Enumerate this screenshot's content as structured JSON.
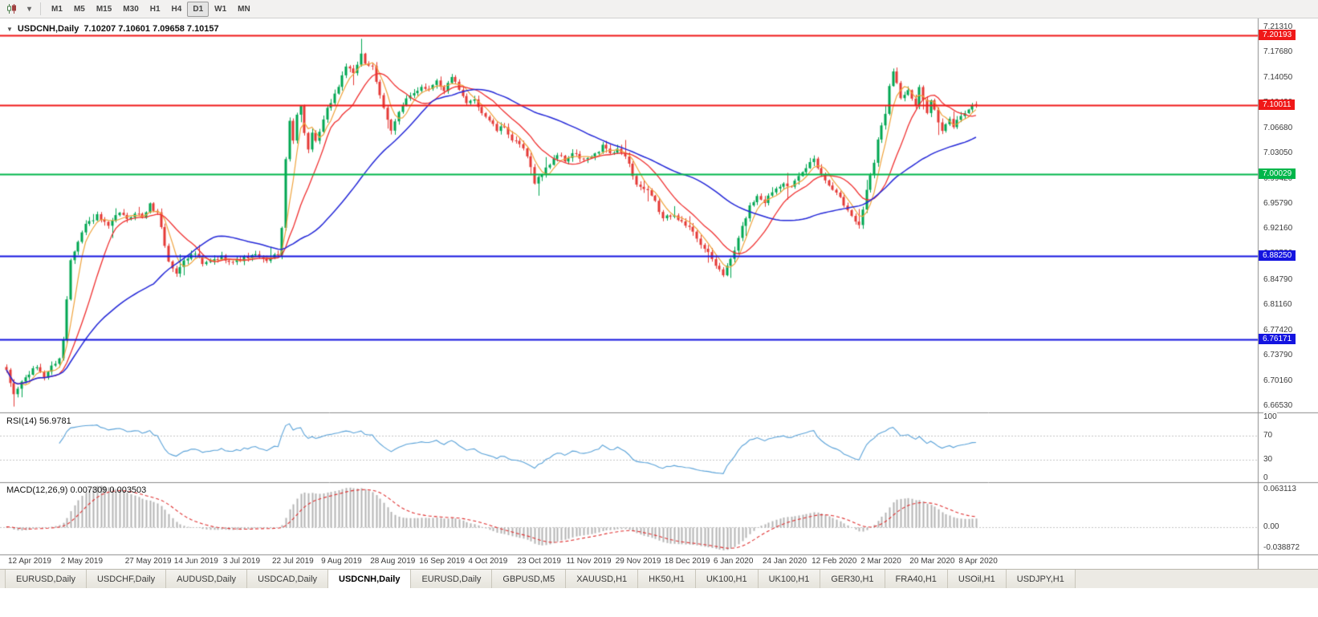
{
  "colors": {
    "up_candle": "#00a651",
    "down_candle": "#e53935",
    "ma_fast": "#f0a33c",
    "ma_mid": "#f03030",
    "ma_slow": "#2428d8",
    "rsi_line": "#5ba3d9",
    "macd_hist": "#b4b4b4",
    "macd_signal": "#e03030",
    "level_red": "#f01818",
    "level_green": "#00b64a",
    "level_blue": "#1414e0",
    "badge_red": "#f01818",
    "badge_green": "#00b64a",
    "badge_blue": "#1414e0",
    "panel_border": "#8c8c8c",
    "grid_dash": "#c6c6c6",
    "axis_text": "#3c3c3c"
  },
  "toolbar": {
    "timeframes": [
      "M1",
      "M5",
      "M15",
      "M30",
      "H1",
      "H4",
      "D1",
      "W1",
      "MN"
    ],
    "active_timeframe": "D1"
  },
  "chart": {
    "header": "USDCNH,Daily  7.10207 7.10601 7.09658 7.10157",
    "symbol": "USDCNH",
    "period": "Daily",
    "open": "7.10207",
    "high": "7.10601",
    "low": "7.09658",
    "close": "7.10157",
    "price_ticks": [
      "7.21310",
      "7.17680",
      "7.14050",
      "7.10420",
      "7.06680",
      "7.03050",
      "6.99420",
      "6.95790",
      "6.92160",
      "6.88530",
      "6.84790",
      "6.81160",
      "6.77420",
      "6.73790",
      "6.70160",
      "6.66530"
    ],
    "badges": [
      {
        "label": "7.20193",
        "value": 7.20193,
        "color_key": "badge_red"
      },
      {
        "label": "7.10011",
        "value": 7.10011,
        "color_key": "badge_red"
      },
      {
        "label": "7.00029",
        "value": 7.00029,
        "color_key": "badge_green"
      },
      {
        "label": "6.88250",
        "value": 6.8825,
        "color_key": "badge_blue"
      },
      {
        "label": "6.76171",
        "value": 6.76171,
        "color_key": "badge_blue"
      }
    ],
    "hlines": [
      {
        "value": 7.20193,
        "color_key": "level_red",
        "width": 2
      },
      {
        "value": 7.10011,
        "color_key": "level_red",
        "width": 2
      },
      {
        "value": 7.00029,
        "color_key": "level_green",
        "width": 2
      },
      {
        "value": 6.8825,
        "color_key": "level_blue",
        "width": 2
      },
      {
        "value": 6.76171,
        "color_key": "level_blue",
        "width": 2
      }
    ]
  },
  "rsi": {
    "label": "RSI(14) 56.9781",
    "period": 14,
    "current": "56.9781",
    "axis": [
      {
        "label": "100",
        "value": 100
      },
      {
        "label": "70",
        "value": 70
      },
      {
        "label": "30",
        "value": 30
      },
      {
        "label": "0",
        "value": 0
      }
    ],
    "levels": [
      70,
      30
    ]
  },
  "macd": {
    "label": "MACD(12,26,9) 0.007309 0.003503",
    "fast": 12,
    "slow": 26,
    "signal": 9,
    "current_main": "0.007309",
    "current_signal": "0.003503",
    "axis": [
      {
        "label": "0.063113",
        "value": 0.063113,
        "pos": "top"
      },
      {
        "label": "0.00",
        "value": 0,
        "pos": "zero"
      },
      {
        "label": "-0.038872",
        "value": -0.038872,
        "pos": "bottom"
      }
    ]
  },
  "chart_data": {
    "type": "candlestick",
    "title": "USDCNH Daily",
    "bars": 258,
    "price_range": [
      6.656,
      7.226
    ],
    "moving_averages": [
      {
        "name": "fast",
        "period": 5,
        "color_key": "ma_fast"
      },
      {
        "name": "mid",
        "period": 13,
        "color_key": "ma_mid"
      },
      {
        "name": "slow",
        "period": 40,
        "color_key": "ma_slow"
      }
    ],
    "indicators": [
      "RSI(14)",
      "MACD(12,26,9)"
    ],
    "close_waypoints": [
      [
        0,
        6.715
      ],
      [
        2,
        6.682
      ],
      [
        4,
        6.7
      ],
      [
        6,
        6.712
      ],
      [
        8,
        6.722
      ],
      [
        10,
        6.708
      ],
      [
        12,
        6.722
      ],
      [
        14,
        6.735
      ],
      [
        15,
        6.76
      ],
      [
        16,
        6.82
      ],
      [
        17,
        6.878
      ],
      [
        19,
        6.905
      ],
      [
        21,
        6.928
      ],
      [
        24,
        6.94
      ],
      [
        27,
        6.924
      ],
      [
        30,
        6.946
      ],
      [
        32,
        6.934
      ],
      [
        34,
        6.946
      ],
      [
        36,
        6.938
      ],
      [
        38,
        6.956
      ],
      [
        40,
        6.944
      ],
      [
        41,
        6.925
      ],
      [
        42,
        6.898
      ],
      [
        43,
        6.874
      ],
      [
        45,
        6.856
      ],
      [
        47,
        6.878
      ],
      [
        50,
        6.886
      ],
      [
        52,
        6.87
      ],
      [
        54,
        6.874
      ],
      [
        57,
        6.881
      ],
      [
        60,
        6.874
      ],
      [
        63,
        6.879
      ],
      [
        66,
        6.883
      ],
      [
        68,
        6.876
      ],
      [
        70,
        6.879
      ],
      [
        72,
        6.886
      ],
      [
        73,
        6.92
      ],
      [
        74,
        7.022
      ],
      [
        75,
        7.078
      ],
      [
        76,
        7.052
      ],
      [
        77,
        7.088
      ],
      [
        78,
        7.098
      ],
      [
        79,
        7.062
      ],
      [
        80,
        7.036
      ],
      [
        81,
        7.058
      ],
      [
        82,
        7.046
      ],
      [
        83,
        7.062
      ],
      [
        85,
        7.094
      ],
      [
        88,
        7.128
      ],
      [
        90,
        7.158
      ],
      [
        92,
        7.144
      ],
      [
        94,
        7.176
      ],
      [
        95,
        7.162
      ],
      [
        97,
        7.155
      ],
      [
        98,
        7.132
      ],
      [
        100,
        7.096
      ],
      [
        102,
        7.066
      ],
      [
        104,
        7.09
      ],
      [
        106,
        7.108
      ],
      [
        108,
        7.118
      ],
      [
        110,
        7.128
      ],
      [
        112,
        7.124
      ],
      [
        114,
        7.138
      ],
      [
        116,
        7.12
      ],
      [
        118,
        7.143
      ],
      [
        120,
        7.121
      ],
      [
        122,
        7.102
      ],
      [
        124,
        7.11
      ],
      [
        126,
        7.09
      ],
      [
        128,
        7.079
      ],
      [
        130,
        7.064
      ],
      [
        132,
        7.07
      ],
      [
        134,
        7.05
      ],
      [
        137,
        7.038
      ],
      [
        139,
        7.01
      ],
      [
        140,
        6.99
      ],
      [
        142,
        7.001
      ],
      [
        144,
        7.016
      ],
      [
        146,
        7.03
      ],
      [
        148,
        7.02
      ],
      [
        150,
        7.031
      ],
      [
        153,
        7.021
      ],
      [
        155,
        7.026
      ],
      [
        157,
        7.031
      ],
      [
        158,
        7.044
      ],
      [
        160,
        7.03
      ],
      [
        162,
        7.035
      ],
      [
        164,
        7.029
      ],
      [
        166,
        7.0
      ],
      [
        167,
        6.986
      ],
      [
        170,
        6.975
      ],
      [
        172,
        6.96
      ],
      [
        174,
        6.936
      ],
      [
        177,
        6.944
      ],
      [
        179,
        6.93
      ],
      [
        182,
        6.919
      ],
      [
        184,
        6.9
      ],
      [
        186,
        6.885
      ],
      [
        188,
        6.869
      ],
      [
        190,
        6.856
      ],
      [
        191,
        6.866
      ],
      [
        193,
        6.89
      ],
      [
        195,
        6.924
      ],
      [
        197,
        6.954
      ],
      [
        199,
        6.97
      ],
      [
        201,
        6.961
      ],
      [
        203,
        6.976
      ],
      [
        206,
        6.99
      ],
      [
        208,
        6.981
      ],
      [
        210,
        6.996
      ],
      [
        212,
        7.01
      ],
      [
        214,
        7.024
      ],
      [
        215,
        7.012
      ],
      [
        217,
        6.991
      ],
      [
        220,
        6.976
      ],
      [
        222,
        6.956
      ],
      [
        224,
        6.941
      ],
      [
        226,
        6.926
      ],
      [
        227,
        6.95
      ],
      [
        228,
        6.98
      ],
      [
        230,
        7.02
      ],
      [
        231,
        7.05
      ],
      [
        233,
        7.09
      ],
      [
        234,
        7.13
      ],
      [
        235,
        7.152
      ],
      [
        237,
        7.112
      ],
      [
        239,
        7.12
      ],
      [
        241,
        7.1
      ],
      [
        242,
        7.124
      ],
      [
        244,
        7.092
      ],
      [
        245,
        7.11
      ],
      [
        247,
        7.076
      ],
      [
        248,
        7.062
      ],
      [
        250,
        7.08
      ],
      [
        251,
        7.07
      ],
      [
        253,
        7.086
      ],
      [
        255,
        7.095
      ],
      [
        257,
        7.1016
      ]
    ],
    "date_ticks": [
      {
        "label": "12 Apr 2019",
        "bar": 0
      },
      {
        "label": "2 May 2019",
        "bar": 14
      },
      {
        "label": "27 May 2019",
        "bar": 31
      },
      {
        "label": "14 Jun 2019",
        "bar": 44
      },
      {
        "label": "3 Jul 2019",
        "bar": 57
      },
      {
        "label": "22 Jul 2019",
        "bar": 70
      },
      {
        "label": "9 Aug 2019",
        "bar": 83
      },
      {
        "label": "28 Aug 2019",
        "bar": 96
      },
      {
        "label": "16 Sep 2019",
        "bar": 109
      },
      {
        "label": "4 Oct 2019",
        "bar": 122
      },
      {
        "label": "23 Oct 2019",
        "bar": 135
      },
      {
        "label": "11 Nov 2019",
        "bar": 148
      },
      {
        "label": "29 Nov 2019",
        "bar": 161
      },
      {
        "label": "18 Dec 2019",
        "bar": 174
      },
      {
        "label": "6 Jan 2020",
        "bar": 187
      },
      {
        "label": "24 Jan 2020",
        "bar": 200
      },
      {
        "label": "12 Feb 2020",
        "bar": 213
      },
      {
        "label": "2 Mar 2020",
        "bar": 226
      },
      {
        "label": "20 Mar 2020",
        "bar": 239
      },
      {
        "label": "8 Apr 2020",
        "bar": 252
      }
    ]
  },
  "tabs": [
    {
      "label": "EURUSD,Daily"
    },
    {
      "label": "USDCHF,Daily"
    },
    {
      "label": "AUDUSD,Daily"
    },
    {
      "label": "USDCAD,Daily"
    },
    {
      "label": "USDCNH,Daily",
      "active": true
    },
    {
      "label": "EURUSD,Daily"
    },
    {
      "label": "GBPUSD,M5"
    },
    {
      "label": "XAUUSD,H1"
    },
    {
      "label": "HK50,H1"
    },
    {
      "label": "UK100,H1"
    },
    {
      "label": "UK100,H1"
    },
    {
      "label": "GER30,H1"
    },
    {
      "label": "FRA40,H1"
    },
    {
      "label": "USOil,H1"
    },
    {
      "label": "USDJPY,H1"
    }
  ]
}
